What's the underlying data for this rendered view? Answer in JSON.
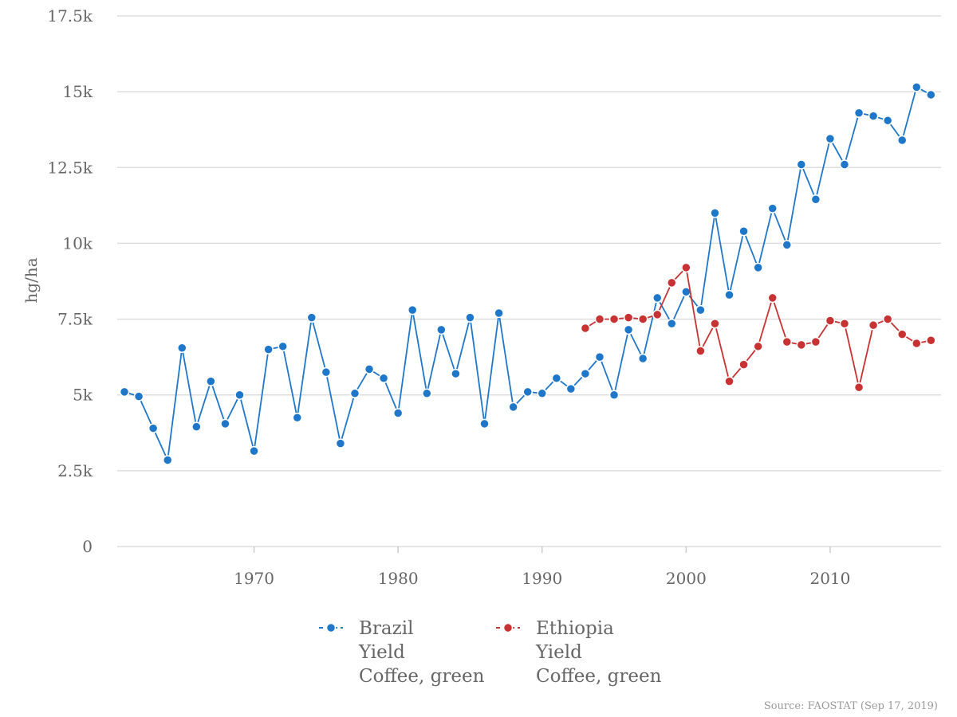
{
  "chart_data": {
    "type": "line",
    "ylabel": "hg/ha",
    "ylim": [
      0,
      17500
    ],
    "xlim": [
      1960.5,
      2017.7
    ],
    "y_ticks": [
      0,
      2500,
      5000,
      7500,
      10000,
      12500,
      15000,
      17500
    ],
    "y_tick_labels": [
      "0",
      "2.5k",
      "5k",
      "7.5k",
      "10k",
      "12.5k",
      "15k",
      "17.5k"
    ],
    "x_ticks": [
      1970,
      1980,
      1990,
      2000,
      2010
    ],
    "x_tick_labels": [
      "1970",
      "1980",
      "1990",
      "2000",
      "2010"
    ],
    "grid": "horizontal",
    "legend_position": "bottom",
    "series": [
      {
        "name": "Brazil",
        "legend_lines": [
          "Brazil",
          "Yield",
          "Coffee, green"
        ],
        "color": "#1f77c9",
        "x": [
          1961,
          1962,
          1963,
          1964,
          1965,
          1966,
          1967,
          1968,
          1969,
          1970,
          1971,
          1972,
          1973,
          1974,
          1975,
          1976,
          1977,
          1978,
          1979,
          1980,
          1981,
          1982,
          1983,
          1984,
          1985,
          1986,
          1987,
          1988,
          1989,
          1990,
          1991,
          1992,
          1993,
          1994,
          1995,
          1996,
          1997,
          1998,
          1999,
          2000,
          2001,
          2002,
          2003,
          2004,
          2005,
          2006,
          2007,
          2008,
          2009,
          2010,
          2011,
          2012,
          2013,
          2014,
          2015,
          2016,
          2017
        ],
        "values": [
          5100,
          4950,
          3900,
          2850,
          6550,
          3950,
          5450,
          4050,
          5000,
          3150,
          6500,
          6600,
          4250,
          7550,
          5750,
          3400,
          5050,
          5850,
          5550,
          4400,
          7800,
          5050,
          7150,
          5700,
          7550,
          4050,
          7700,
          4600,
          5100,
          5050,
          5550,
          5200,
          5700,
          6250,
          5000,
          7150,
          6200,
          8200,
          7350,
          8400,
          7800,
          11000,
          8300,
          10400,
          9200,
          11150,
          9950,
          12600,
          11450,
          13450,
          12600,
          14300,
          14200,
          14050,
          13400,
          15150,
          14900
        ]
      },
      {
        "name": "Ethiopia",
        "legend_lines": [
          "Ethiopia",
          "Yield",
          "Coffee, green"
        ],
        "color": "#c83232",
        "x": [
          1993,
          1994,
          1995,
          1996,
          1997,
          1998,
          1999,
          2000,
          2001,
          2002,
          2003,
          2004,
          2005,
          2006,
          2007,
          2008,
          2009,
          2010,
          2011,
          2012,
          2013,
          2014,
          2015,
          2016,
          2017
        ],
        "values": [
          7200,
          7500,
          7500,
          7550,
          7500,
          7650,
          8700,
          9200,
          6450,
          7350,
          5450,
          6000,
          6600,
          8200,
          6750,
          6650,
          6750,
          7450,
          7350,
          5250,
          7300,
          7500,
          7000,
          6700,
          6800
        ]
      }
    ],
    "source": "Source: FAOSTAT (Sep 17, 2019)"
  }
}
